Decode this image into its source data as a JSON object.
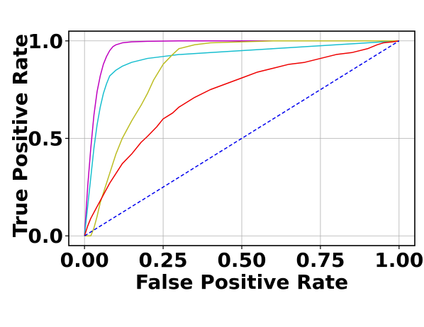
{
  "chart_data": {
    "type": "line",
    "title": "",
    "xlabel": "False Positive Rate",
    "ylabel": "True Positive Rate",
    "xlim": [
      -0.05,
      1.05
    ],
    "ylim": [
      -0.05,
      1.05
    ],
    "xticks": [
      0.0,
      0.25,
      0.5,
      0.75,
      1.0
    ],
    "xtick_labels": [
      "0.00",
      "0.25",
      "0.50",
      "0.75",
      "1.00"
    ],
    "yticks": [
      0.0,
      0.5,
      1.0
    ],
    "ytick_labels": [
      "0.0",
      "0.5",
      "1.0"
    ],
    "grid": true,
    "legend": "none",
    "series": [
      {
        "color": "#bf00bf",
        "x": [
          0.0,
          0.01,
          0.02,
          0.03,
          0.04,
          0.05,
          0.06,
          0.07,
          0.08,
          0.09,
          0.1,
          0.12,
          0.15,
          0.2,
          0.3,
          0.5,
          0.75,
          1.0
        ],
        "y": [
          0.0,
          0.25,
          0.45,
          0.62,
          0.74,
          0.82,
          0.88,
          0.92,
          0.95,
          0.97,
          0.98,
          0.99,
          0.995,
          0.998,
          1.0,
          1.0,
          1.0,
          1.0
        ]
      },
      {
        "color": "#17becf",
        "x": [
          0.0,
          0.01,
          0.02,
          0.03,
          0.04,
          0.05,
          0.06,
          0.07,
          0.08,
          0.1,
          0.12,
          0.15,
          0.2,
          0.25,
          0.3,
          0.4,
          0.5,
          0.6,
          0.7,
          0.8,
          0.9,
          0.95,
          1.0
        ],
        "y": [
          0.0,
          0.15,
          0.3,
          0.45,
          0.57,
          0.66,
          0.73,
          0.78,
          0.82,
          0.85,
          0.87,
          0.89,
          0.91,
          0.92,
          0.93,
          0.94,
          0.95,
          0.96,
          0.97,
          0.98,
          0.99,
          0.995,
          1.0
        ]
      },
      {
        "color": "#bcbd22",
        "x": [
          0.0,
          0.02,
          0.03,
          0.04,
          0.05,
          0.06,
          0.08,
          0.1,
          0.12,
          0.15,
          0.18,
          0.2,
          0.22,
          0.25,
          0.28,
          0.3,
          0.35,
          0.4,
          0.5,
          0.6,
          0.75,
          1.0
        ],
        "y": [
          0.0,
          0.0,
          0.04,
          0.1,
          0.17,
          0.22,
          0.32,
          0.42,
          0.5,
          0.59,
          0.67,
          0.73,
          0.8,
          0.88,
          0.93,
          0.96,
          0.98,
          0.99,
          0.995,
          1.0,
          1.0,
          1.0
        ]
      },
      {
        "color": "#ee0000",
        "x": [
          0.0,
          0.01,
          0.02,
          0.04,
          0.06,
          0.08,
          0.1,
          0.12,
          0.15,
          0.18,
          0.2,
          0.23,
          0.25,
          0.28,
          0.3,
          0.35,
          0.4,
          0.45,
          0.5,
          0.55,
          0.6,
          0.65,
          0.7,
          0.75,
          0.8,
          0.85,
          0.9,
          0.93,
          0.95,
          0.98,
          1.0
        ],
        "y": [
          0.0,
          0.05,
          0.09,
          0.15,
          0.21,
          0.27,
          0.32,
          0.37,
          0.42,
          0.48,
          0.51,
          0.56,
          0.6,
          0.63,
          0.66,
          0.71,
          0.75,
          0.78,
          0.81,
          0.84,
          0.86,
          0.88,
          0.89,
          0.91,
          0.93,
          0.94,
          0.96,
          0.98,
          0.99,
          0.995,
          1.0
        ]
      },
      {
        "color": "#0000ee",
        "style": "dashed",
        "x": [
          0.0,
          1.0
        ],
        "y": [
          0.0,
          1.0
        ]
      }
    ]
  }
}
